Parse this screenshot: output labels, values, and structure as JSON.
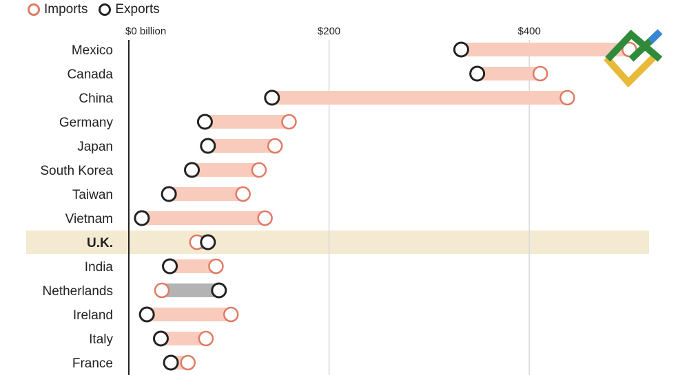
{
  "legend": {
    "imports_label": "Imports",
    "exports_label": "Exports"
  },
  "colors": {
    "imports": "#e07a63",
    "exports": "#222222",
    "bar_import_surplus": "#f8cbbd",
    "bar_export_surplus": "#b3b3b3",
    "highlight_band": "#f3ead1",
    "grid": "#d9d9d9",
    "axis": "#222222"
  },
  "chart_data": {
    "type": "dumbbell",
    "x_axis": {
      "min": 0,
      "max": 500,
      "ticks": [
        {
          "value": 0,
          "label": "$0 billion"
        },
        {
          "value": 200,
          "label": "$200"
        },
        {
          "value": 400,
          "label": "$400"
        }
      ]
    },
    "grid": true,
    "legend_position": "top-left",
    "highlight": "U.K.",
    "categories": [
      "Mexico",
      "Canada",
      "China",
      "Germany",
      "Japan",
      "South Korea",
      "Taiwan",
      "Vietnam",
      "U.K.",
      "India",
      "Netherlands",
      "Ireland",
      "Italy",
      "France"
    ],
    "series": [
      {
        "name": "Imports",
        "values": [
          500,
          411,
          438,
          160,
          146,
          130,
          114,
          136,
          68,
          87,
          33,
          102,
          77,
          59
        ]
      },
      {
        "name": "Exports",
        "values": [
          332,
          348,
          143,
          76,
          79,
          63,
          40,
          13,
          79,
          41,
          90,
          18,
          32,
          42
        ]
      }
    ]
  }
}
